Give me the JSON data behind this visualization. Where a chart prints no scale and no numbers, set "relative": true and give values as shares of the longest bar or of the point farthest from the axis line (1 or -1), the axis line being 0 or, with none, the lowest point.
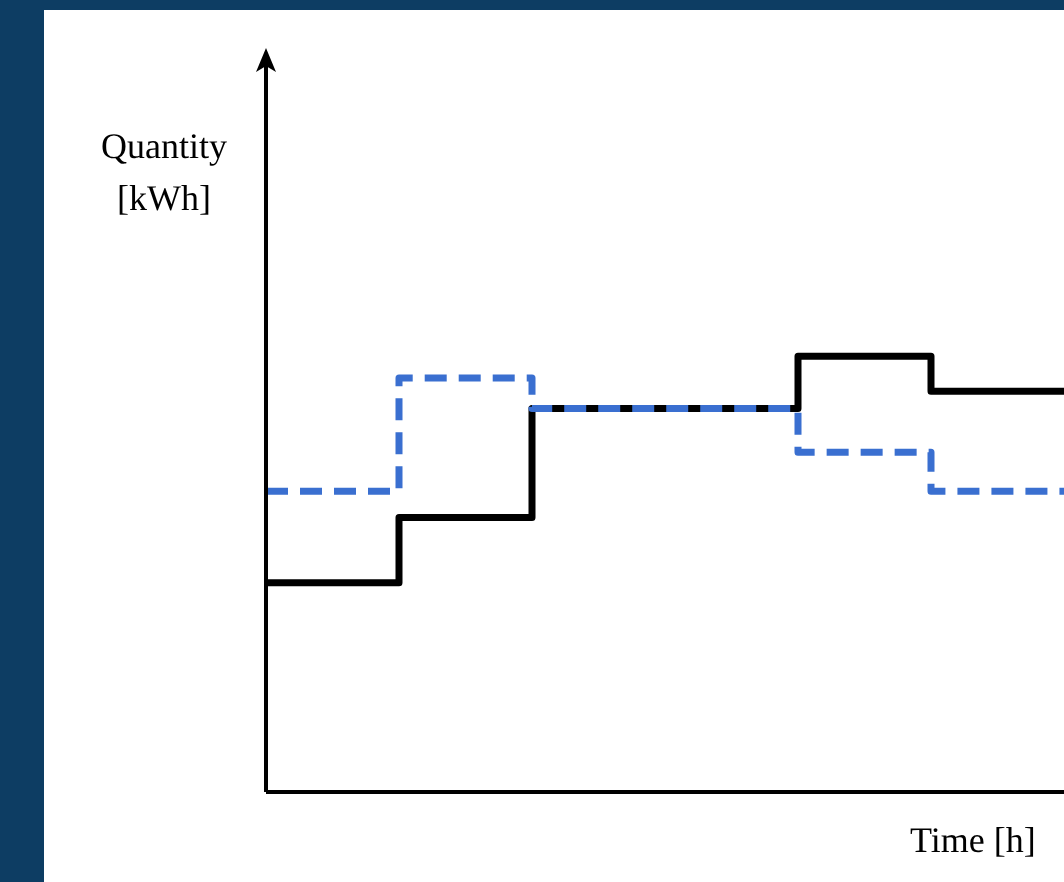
{
  "chart_data": {
    "type": "step",
    "xlabel": "Time [h]",
    "ylabel": "Quantity [kWh]",
    "relative": true,
    "categories": [
      null,
      null,
      null,
      null,
      null,
      null,
      null
    ],
    "series": [
      {
        "color": "#000000",
        "line_style": "solid",
        "values": [
          0.48,
          0.63,
          0.88,
          0.88,
          1,
          0.92,
          0.92
        ]
      },
      {
        "color": "#3a6fd0",
        "line_style": "dashed",
        "values": [
          0.69,
          0.95,
          0.88,
          0.88,
          0.78,
          0.69,
          0.69
        ]
      }
    ],
    "marker": "none",
    "grid": false,
    "legend": false
  }
}
